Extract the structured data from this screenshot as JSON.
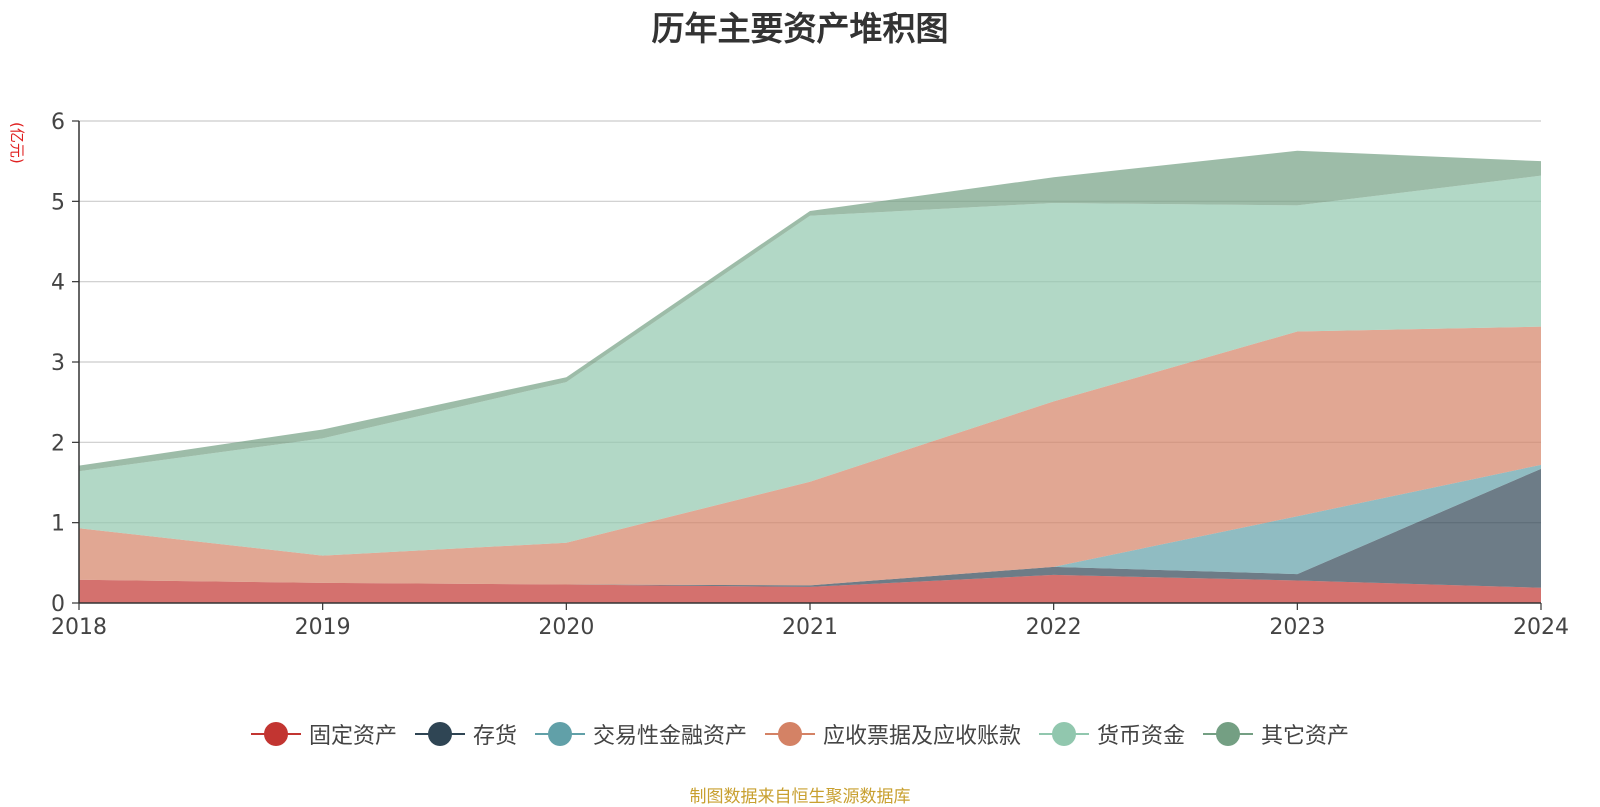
{
  "chart_data": {
    "type": "area",
    "stacked": true,
    "title": "历年主要资产堆积图",
    "ylabel": "(亿元)",
    "x": [
      "2018",
      "2019",
      "2020",
      "2021",
      "2022",
      "2023",
      "2024"
    ],
    "ylim": [
      0,
      6
    ],
    "yticks": [
      "0",
      "1",
      "2",
      "3",
      "4",
      "5",
      "6"
    ],
    "grid": true,
    "legend_position": "bottom",
    "series": [
      {
        "name": "固定资产",
        "color": "#c23531",
        "values": [
          0.29,
          0.25,
          0.23,
          0.2,
          0.35,
          0.28,
          0.19
        ]
      },
      {
        "name": "存货",
        "color": "#2f4554",
        "values": [
          0.0,
          0.0,
          0.0,
          0.02,
          0.1,
          0.08,
          1.48
        ]
      },
      {
        "name": "交易性金融资产",
        "color": "#61a0a8",
        "values": [
          0.0,
          0.0,
          0.0,
          0.0,
          0.0,
          0.72,
          0.05
        ]
      },
      {
        "name": "应收票据及应收账款",
        "color": "#d48265",
        "values": [
          0.64,
          0.34,
          0.52,
          1.29,
          2.06,
          2.3,
          1.72
        ]
      },
      {
        "name": "货币资金",
        "color": "#91c7ae",
        "values": [
          0.71,
          1.46,
          2.0,
          3.31,
          2.47,
          1.57,
          1.88
        ]
      },
      {
        "name": "其它资产",
        "color": "#749f83",
        "values": [
          0.07,
          0.11,
          0.06,
          0.06,
          0.32,
          0.68,
          0.18
        ]
      }
    ]
  },
  "source_text": "制图数据来自恒生聚源数据库"
}
